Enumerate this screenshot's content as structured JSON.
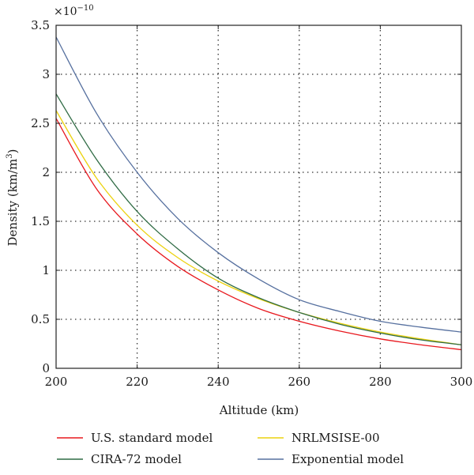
{
  "chart_data": {
    "type": "line",
    "xlabel": "Altitude (km)",
    "ylabel_main": "Density (km/m",
    "ylabel_sup": "3",
    "ylabel_close": ")",
    "y_multiplier_base": "×10",
    "y_multiplier_exp": "−10",
    "xlim": [
      200,
      300
    ],
    "ylim": [
      0,
      3.5
    ],
    "xticks": [
      200,
      220,
      240,
      260,
      280,
      300
    ],
    "xtick_labels": [
      "200",
      "220",
      "240",
      "260",
      "280",
      "300"
    ],
    "yticks": [
      0,
      0.5,
      1,
      1.5,
      2,
      2.5,
      3,
      3.5
    ],
    "ytick_labels": [
      "0",
      "0.5",
      "1",
      "1.5",
      "2",
      "2.5",
      "3",
      "3.5"
    ],
    "grid": true,
    "legend_position": "bottom",
    "x": [
      200,
      210,
      220,
      230,
      240,
      250,
      260,
      270,
      280,
      290,
      300
    ],
    "series": [
      {
        "name": "U.S. standard model",
        "color": "#e8181e",
        "values": [
          2.55,
          1.83,
          1.37,
          1.04,
          0.8,
          0.61,
          0.48,
          0.38,
          0.3,
          0.24,
          0.19
        ]
      },
      {
        "name": "NRLMSISE-00",
        "color": "#ecd20f",
        "values": [
          2.63,
          1.94,
          1.46,
          1.13,
          0.89,
          0.71,
          0.57,
          0.46,
          0.37,
          0.3,
          0.24
        ]
      },
      {
        "name": "CIRA-72 model",
        "color": "#2f6b44",
        "values": [
          2.8,
          2.13,
          1.6,
          1.22,
          0.92,
          0.72,
          0.57,
          0.45,
          0.36,
          0.29,
          0.24
        ]
      },
      {
        "name": "Exponential model",
        "color": "#56709f",
        "values": [
          3.38,
          2.6,
          2.0,
          1.53,
          1.18,
          0.91,
          0.7,
          0.58,
          0.48,
          0.42,
          0.37
        ]
      }
    ]
  }
}
